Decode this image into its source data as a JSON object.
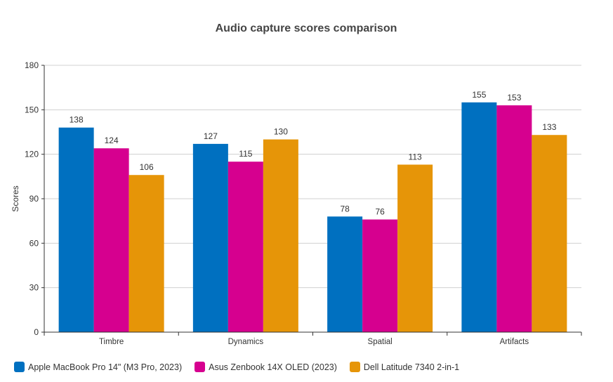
{
  "chart_data": {
    "type": "bar",
    "title": "Audio capture scores comparison",
    "xlabel": "",
    "ylabel": "Scores",
    "ylim": [
      0,
      180
    ],
    "yticks": [
      0,
      30,
      60,
      90,
      120,
      150,
      180
    ],
    "grid": true,
    "legend_position": "bottom-left",
    "categories": [
      "Timbre",
      "Dynamics",
      "Spatial",
      "Artifacts"
    ],
    "series": [
      {
        "name": "Apple MacBook Pro 14\" (M3 Pro, 2023)",
        "color": "#0070c0",
        "values": [
          138,
          127,
          78,
          155
        ]
      },
      {
        "name": "Asus Zenbook 14X OLED (2023)",
        "color": "#d6008f",
        "values": [
          124,
          115,
          76,
          153
        ]
      },
      {
        "name": "Dell Latitude 7340 2-in-1",
        "color": "#e69508",
        "values": [
          106,
          130,
          113,
          133
        ]
      }
    ]
  }
}
